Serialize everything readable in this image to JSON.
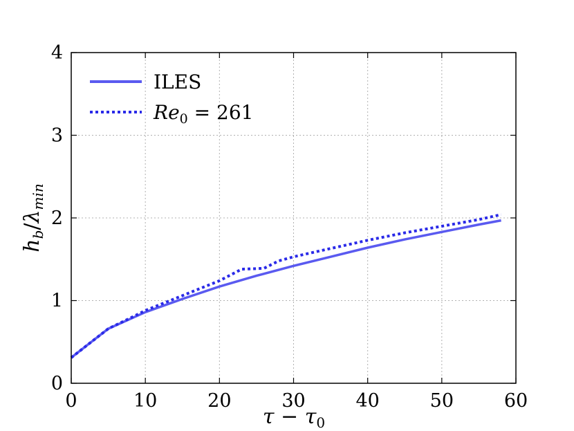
{
  "chart_data": {
    "type": "line",
    "xlabel": "τ − τ₀",
    "ylabel": "h_b/λ_min",
    "xlim": [
      0,
      60
    ],
    "ylim": [
      0,
      4
    ],
    "xticks": [
      0,
      10,
      20,
      30,
      40,
      50,
      60
    ],
    "yticks": [
      0,
      1,
      2,
      3,
      4
    ],
    "grid": true,
    "legend_position": "top-left",
    "series": [
      {
        "name": "ILES",
        "style": "solid",
        "color": "#5a5af0",
        "x": [
          0,
          2,
          5,
          8,
          10,
          15,
          20,
          25,
          30,
          35,
          40,
          45,
          50,
          55,
          58
        ],
        "y": [
          0.31,
          0.45,
          0.66,
          0.78,
          0.86,
          1.02,
          1.17,
          1.3,
          1.42,
          1.53,
          1.64,
          1.74,
          1.83,
          1.92,
          1.97
        ]
      },
      {
        "name": "Re₀ = 261",
        "style": "dotted",
        "color": "#2a2ae8",
        "x": [
          0,
          2,
          5,
          8,
          10,
          15,
          20,
          23,
          26,
          28,
          30,
          35,
          40,
          45,
          50,
          55,
          58
        ],
        "y": [
          0.31,
          0.45,
          0.66,
          0.79,
          0.88,
          1.06,
          1.24,
          1.38,
          1.39,
          1.48,
          1.53,
          1.63,
          1.73,
          1.82,
          1.9,
          1.98,
          2.04
        ]
      }
    ]
  },
  "legend": {
    "iles_label": "ILES",
    "re_label_prefix": "Re",
    "re_label_sub": "0",
    "re_label_suffix": " = 261"
  },
  "axes": {
    "xlabel_tau": "τ",
    "xlabel_minus": " − ",
    "xlabel_sub": "0",
    "ylabel_h": "h",
    "ylabel_h_sub": "b",
    "ylabel_slash": "/",
    "ylabel_lambda": "λ",
    "ylabel_lambda_sub": "min"
  }
}
